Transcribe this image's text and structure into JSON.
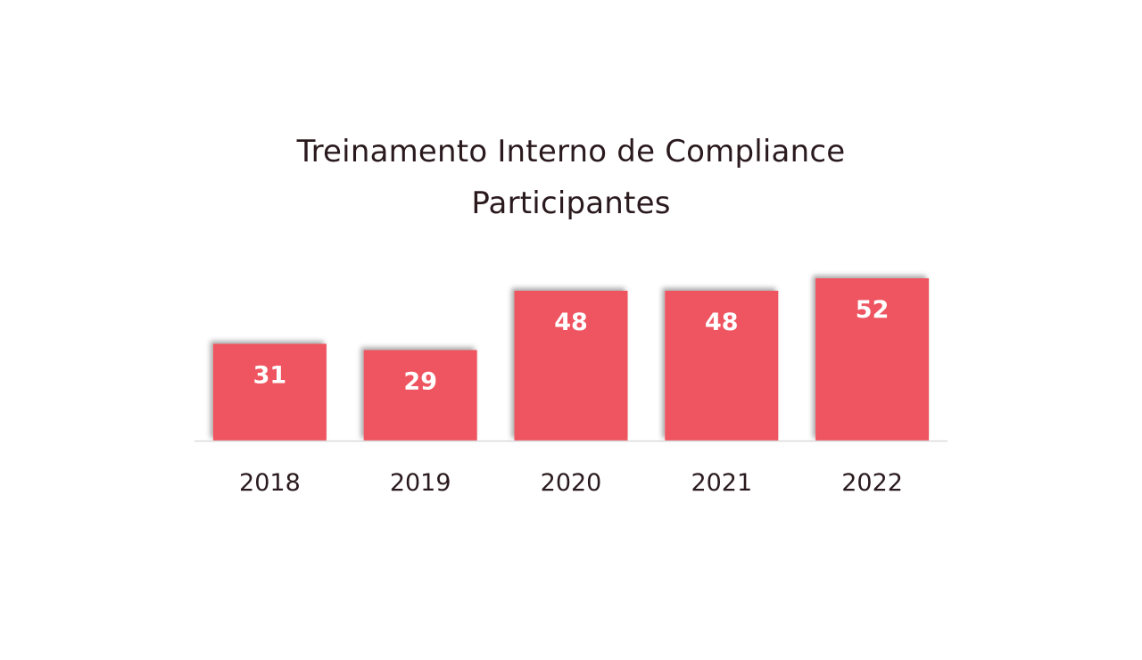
{
  "chart_data": {
    "type": "bar",
    "title": "Treinamento Interno de Compliance",
    "subtitle": "Participantes",
    "categories": [
      "2018",
      "2019",
      "2020",
      "2021",
      "2022"
    ],
    "values": [
      31,
      29,
      48,
      48,
      52
    ],
    "data_labels": [
      "31",
      "29",
      "48",
      "48",
      "52"
    ],
    "xlabel": "",
    "ylabel": "",
    "ylim": [
      0,
      52
    ],
    "grid": false,
    "legend": "none",
    "colors": {
      "bar": "#ef5561",
      "axis": "#d9d9d9",
      "text": "#2a1a1e",
      "label": "#ffffff"
    }
  }
}
